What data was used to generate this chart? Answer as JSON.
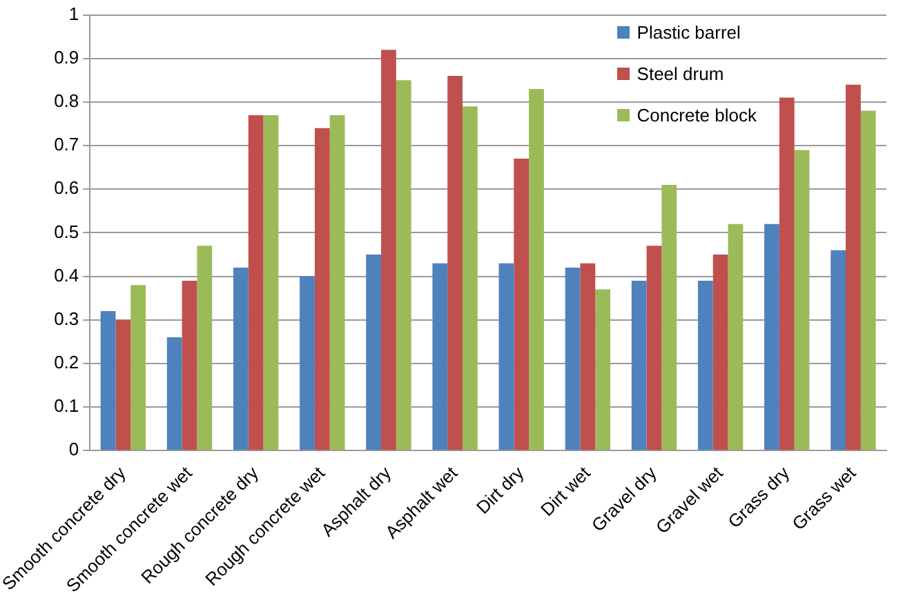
{
  "chart_data": {
    "type": "bar",
    "categories": [
      "Smooth concrete dry",
      "Smooth concrete wet",
      "Rough concrete dry",
      "Rough concrete wet",
      "Asphalt dry",
      "Asphalt wet",
      "Dirt dry",
      "Dirt wet",
      "Gravel dry",
      "Gravel wet",
      "Grass dry",
      "Grass wet"
    ],
    "series": [
      {
        "name": "Plastic barrel",
        "color": "#4f81bd",
        "values": [
          0.32,
          0.26,
          0.42,
          0.4,
          0.45,
          0.43,
          0.43,
          0.42,
          0.39,
          0.39,
          0.52,
          0.46
        ]
      },
      {
        "name": "Steel drum",
        "color": "#c0504d",
        "values": [
          0.3,
          0.39,
          0.77,
          0.74,
          0.92,
          0.86,
          0.67,
          0.43,
          0.47,
          0.45,
          0.81,
          0.84
        ]
      },
      {
        "name": "Concrete block",
        "color": "#9bbb59",
        "values": [
          0.38,
          0.47,
          0.77,
          0.77,
          0.85,
          0.79,
          0.83,
          0.37,
          0.61,
          0.52,
          0.69,
          0.78
        ]
      }
    ],
    "ylim": [
      0,
      1
    ],
    "yticks": [
      0,
      0.1,
      0.2,
      0.3,
      0.4,
      0.5,
      0.6,
      0.7,
      0.8,
      0.9,
      1
    ],
    "grid": "y",
    "legend": "top right"
  }
}
